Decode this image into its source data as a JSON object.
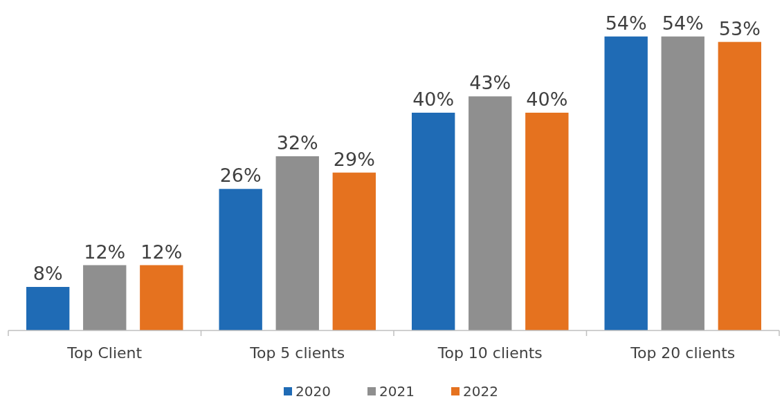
{
  "chart_data": {
    "type": "bar",
    "categories": [
      "Top Client",
      "Top 5 clients",
      "Top 10 clients",
      "Top 20 clients"
    ],
    "series": [
      {
        "name": "2020",
        "color": "#1f6bb5",
        "values": [
          8,
          26,
          40,
          54
        ],
        "value_labels": [
          "8%",
          "26%",
          "40%",
          "54%"
        ]
      },
      {
        "name": "2021",
        "color": "#8f8f8f",
        "values": [
          12,
          32,
          43,
          54
        ],
        "value_labels": [
          "12%",
          "32%",
          "43%",
          "54%"
        ]
      },
      {
        "name": "2022",
        "color": "#e5721f",
        "values": [
          12,
          29,
          40,
          53
        ],
        "value_labels": [
          "12%",
          "29%",
          "40%",
          "53%"
        ]
      }
    ],
    "legend": "bottom"
  }
}
